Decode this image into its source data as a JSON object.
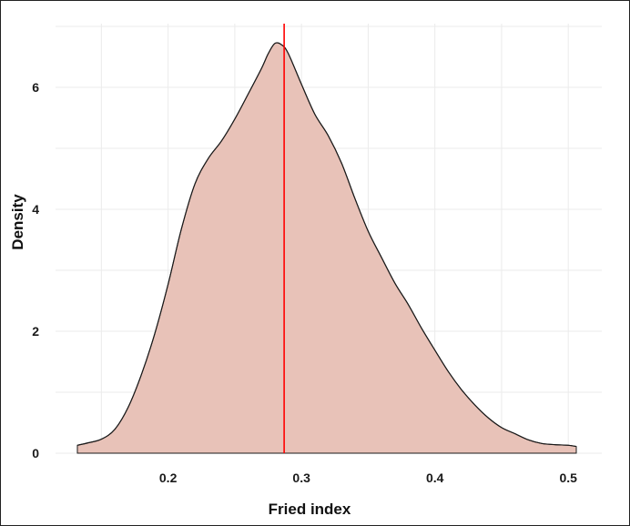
{
  "chart_data": {
    "type": "area",
    "xlabel": "Fried index",
    "ylabel": "Density",
    "xlim": [
      0.132,
      0.506
    ],
    "ylim": [
      0,
      7
    ],
    "x_ticks": [
      0.2,
      0.3,
      0.4,
      0.5
    ],
    "x_tick_labels": [
      "0.2",
      "0.3",
      "0.4",
      "0.5"
    ],
    "y_ticks": [
      0,
      2,
      4,
      6
    ],
    "y_tick_labels": [
      "0",
      "2",
      "4",
      "6"
    ],
    "grid": true,
    "series": [
      {
        "x": [
          0.132,
          0.14,
          0.15,
          0.16,
          0.17,
          0.18,
          0.19,
          0.2,
          0.21,
          0.22,
          0.23,
          0.24,
          0.25,
          0.26,
          0.27,
          0.275,
          0.28,
          0.285,
          0.29,
          0.3,
          0.31,
          0.32,
          0.33,
          0.34,
          0.35,
          0.36,
          0.37,
          0.38,
          0.39,
          0.4,
          0.41,
          0.42,
          0.43,
          0.44,
          0.45,
          0.46,
          0.47,
          0.48,
          0.49,
          0.5,
          0.506
        ],
        "y": [
          0.13,
          0.17,
          0.23,
          0.39,
          0.75,
          1.29,
          1.96,
          2.77,
          3.68,
          4.41,
          4.83,
          5.12,
          5.48,
          5.89,
          6.31,
          6.55,
          6.72,
          6.7,
          6.56,
          6.05,
          5.56,
          5.21,
          4.76,
          4.18,
          3.64,
          3.21,
          2.79,
          2.44,
          2.05,
          1.69,
          1.34,
          1.04,
          0.79,
          0.58,
          0.42,
          0.32,
          0.22,
          0.16,
          0.14,
          0.13,
          0.11
        ]
      }
    ],
    "vline": 0.287,
    "colors": {
      "fill": "#e8c2b8",
      "line": "#1a1a1a",
      "vline": "#ff0000",
      "grid": "#ebebeb"
    }
  }
}
